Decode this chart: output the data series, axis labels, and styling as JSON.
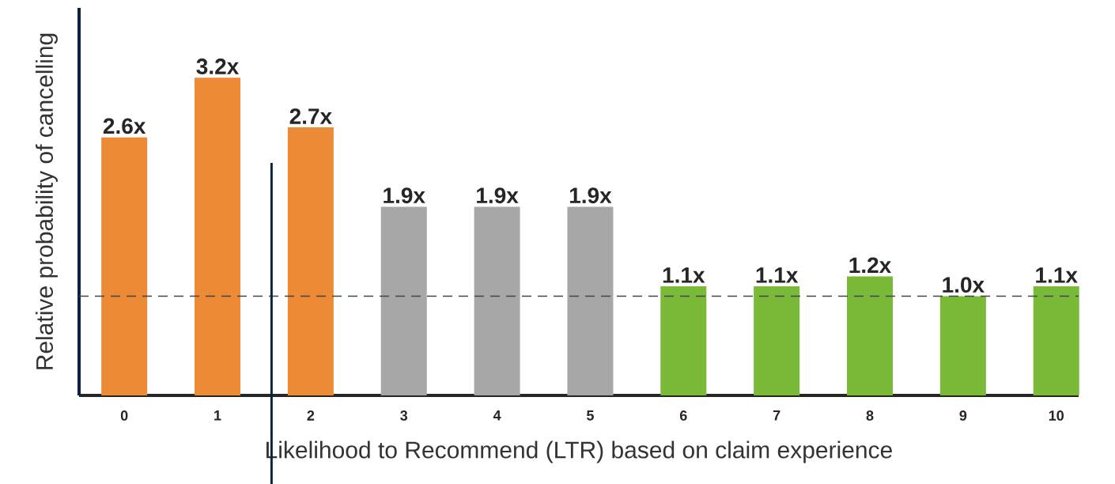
{
  "chart_data": {
    "type": "bar",
    "xlabel": "Likelihood to Recommend (LTR) based on claim experience",
    "ylabel": "Relative probability of cancelling",
    "categories": [
      "0",
      "1",
      "2",
      "3",
      "4",
      "5",
      "6",
      "7",
      "8",
      "9",
      "10"
    ],
    "values": [
      2.6,
      3.2,
      2.7,
      1.9,
      1.9,
      1.9,
      1.1,
      1.1,
      1.2,
      1.0,
      1.1
    ],
    "value_labels": [
      "2.6x",
      "3.2x",
      "2.7x",
      "1.9x",
      "1.9x",
      "1.9x",
      "1.1x",
      "1.1x",
      "1.2x",
      "1.0x",
      "1.1x"
    ],
    "colors": [
      "#ec8a36",
      "#ec8a36",
      "#ec8a36",
      "#a7a7a7",
      "#a7a7a7",
      "#a7a7a7",
      "#7aba38",
      "#7aba38",
      "#7aba38",
      "#7aba38",
      "#7aba38"
    ],
    "ref_lines": [
      {
        "axis": "y",
        "value": 1.0,
        "color": "#444444",
        "line_style": "dashed"
      }
    ],
    "grid": false
  }
}
